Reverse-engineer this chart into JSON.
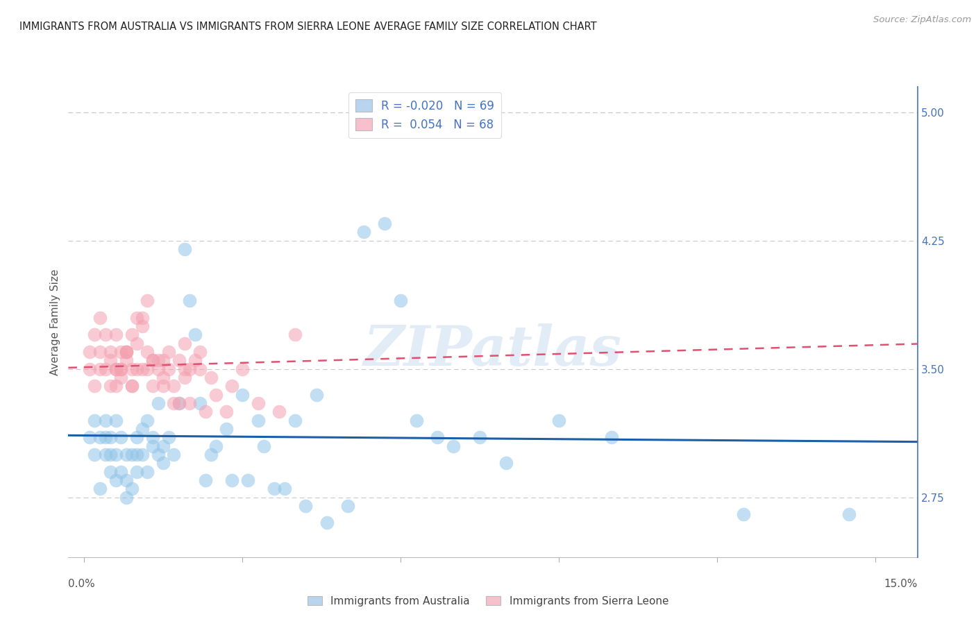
{
  "title": "IMMIGRANTS FROM AUSTRALIA VS IMMIGRANTS FROM SIERRA LEONE AVERAGE FAMILY SIZE CORRELATION CHART",
  "source": "Source: ZipAtlas.com",
  "ylabel": "Average Family Size",
  "ylim": [
    2.4,
    5.15
  ],
  "xlim": [
    -0.003,
    0.158
  ],
  "yticks_right": [
    2.75,
    3.5,
    4.25,
    5.0
  ],
  "watermark": "ZIPatlas",
  "australia_color": "#90c4e8",
  "sierra_leone_color": "#f4a0b0",
  "trend_australia_color": "#1a5fa8",
  "trend_sierra_leone_color": "#e05070",
  "background_color": "#ffffff",
  "grid_color": "#c8c8d0",
  "australia_R": -0.02,
  "sierra_leone_R": 0.054,
  "australia_N": 69,
  "sierra_leone_N": 68,
  "australia_scatter": {
    "x": [
      0.001,
      0.002,
      0.002,
      0.003,
      0.003,
      0.004,
      0.004,
      0.004,
      0.005,
      0.005,
      0.005,
      0.006,
      0.006,
      0.006,
      0.007,
      0.007,
      0.008,
      0.008,
      0.008,
      0.009,
      0.009,
      0.01,
      0.01,
      0.01,
      0.011,
      0.011,
      0.012,
      0.012,
      0.013,
      0.013,
      0.014,
      0.014,
      0.015,
      0.015,
      0.016,
      0.017,
      0.018,
      0.019,
      0.02,
      0.021,
      0.022,
      0.023,
      0.024,
      0.025,
      0.027,
      0.028,
      0.03,
      0.031,
      0.033,
      0.034,
      0.036,
      0.038,
      0.04,
      0.042,
      0.044,
      0.046,
      0.05,
      0.053,
      0.057,
      0.06,
      0.063,
      0.067,
      0.07,
      0.075,
      0.08,
      0.09,
      0.1,
      0.125,
      0.145
    ],
    "y": [
      3.1,
      3.0,
      3.2,
      2.8,
      3.1,
      3.0,
      3.2,
      3.1,
      3.0,
      2.9,
      3.1,
      3.2,
      2.85,
      3.0,
      2.9,
      3.1,
      3.0,
      2.75,
      2.85,
      3.0,
      2.8,
      3.1,
      3.0,
      2.9,
      3.15,
      3.0,
      2.9,
      3.2,
      3.05,
      3.1,
      3.0,
      3.3,
      2.95,
      3.05,
      3.1,
      3.0,
      3.3,
      4.2,
      3.9,
      3.7,
      3.3,
      2.85,
      3.0,
      3.05,
      3.15,
      2.85,
      3.35,
      2.85,
      3.2,
      3.05,
      2.8,
      2.8,
      3.2,
      2.7,
      3.35,
      2.6,
      2.7,
      4.3,
      4.35,
      3.9,
      3.2,
      3.1,
      3.05,
      3.1,
      2.95,
      3.2,
      3.1,
      2.65,
      2.65
    ]
  },
  "sierra_leone_scatter": {
    "x": [
      0.001,
      0.001,
      0.002,
      0.002,
      0.003,
      0.003,
      0.003,
      0.004,
      0.004,
      0.005,
      0.005,
      0.005,
      0.006,
      0.006,
      0.007,
      0.007,
      0.008,
      0.008,
      0.009,
      0.009,
      0.01,
      0.01,
      0.011,
      0.011,
      0.012,
      0.013,
      0.014,
      0.015,
      0.016,
      0.017,
      0.018,
      0.019,
      0.02,
      0.021,
      0.023,
      0.025,
      0.027,
      0.03,
      0.033,
      0.037,
      0.04,
      0.014,
      0.017,
      0.02,
      0.009,
      0.008,
      0.006,
      0.007,
      0.013,
      0.019,
      0.022,
      0.015,
      0.011,
      0.016,
      0.012,
      0.018,
      0.024,
      0.028,
      0.01,
      0.012,
      0.009,
      0.008,
      0.006,
      0.007,
      0.013,
      0.019,
      0.022,
      0.015
    ],
    "y": [
      3.5,
      3.6,
      3.4,
      3.7,
      3.5,
      3.8,
      3.6,
      3.5,
      3.7,
      3.55,
      3.4,
      3.6,
      3.7,
      3.5,
      3.6,
      3.45,
      3.55,
      3.6,
      3.4,
      3.7,
      3.65,
      3.5,
      3.75,
      3.8,
      3.6,
      3.55,
      3.5,
      3.55,
      3.5,
      3.4,
      3.3,
      3.45,
      3.5,
      3.55,
      3.25,
      3.35,
      3.25,
      3.5,
      3.3,
      3.25,
      3.7,
      3.55,
      3.3,
      3.3,
      3.4,
      3.6,
      3.5,
      3.5,
      3.4,
      3.5,
      3.6,
      3.4,
      3.5,
      3.6,
      3.5,
      3.55,
      3.45,
      3.4,
      3.8,
      3.9,
      3.5,
      3.6,
      3.4,
      3.5,
      3.55,
      3.65,
      3.5,
      3.45
    ]
  }
}
